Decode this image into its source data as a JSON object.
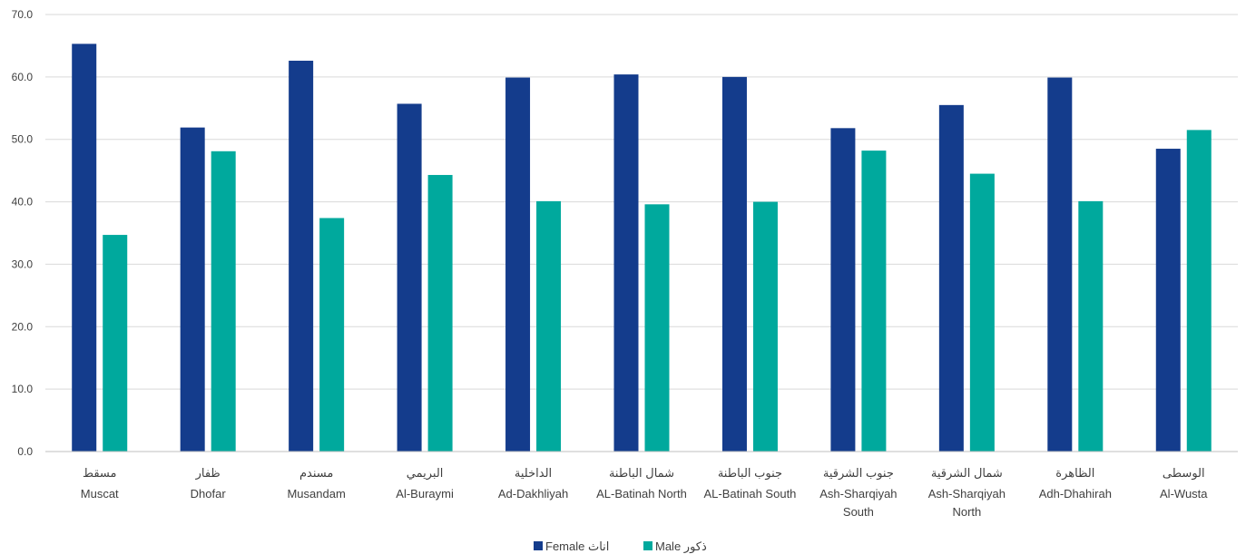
{
  "chart_data": {
    "type": "bar",
    "title": "",
    "xlabel": "",
    "ylabel": "",
    "ylim": [
      0,
      70
    ],
    "yticks": [
      "0.0",
      "10.0",
      "20.0",
      "30.0",
      "40.0",
      "50.0",
      "60.0",
      "70.0"
    ],
    "grid": true,
    "legend_position": "bottom",
    "categories": [
      {
        "ar": "مسقط",
        "en": [
          "Muscat"
        ]
      },
      {
        "ar": "ظفار",
        "en": [
          "Dhofar"
        ]
      },
      {
        "ar": "مسندم",
        "en": [
          "Musandam"
        ]
      },
      {
        "ar": "البريمي",
        "en": [
          "Al-Buraymi"
        ]
      },
      {
        "ar": "الداخلية",
        "en": [
          "Ad-Dakhliyah"
        ]
      },
      {
        "ar": "شمال الباطنة",
        "en": [
          "AL-Batinah North"
        ]
      },
      {
        "ar": "جنوب الباطنة",
        "en": [
          "AL-Batinah South"
        ]
      },
      {
        "ar": "جنوب الشرقية",
        "en": [
          "Ash-Sharqiyah",
          "South"
        ]
      },
      {
        "ar": "شمال الشرقية",
        "en": [
          "Ash-Sharqiyah",
          "North"
        ]
      },
      {
        "ar": "الظاهرة",
        "en": [
          "Adh-Dhahirah"
        ]
      },
      {
        "ar": "الوسطى",
        "en": [
          "Al-Wusta"
        ]
      }
    ],
    "series": [
      {
        "name": "Female اناث",
        "color": "#143C8C",
        "values": [
          65.3,
          51.9,
          62.6,
          55.7,
          59.9,
          60.4,
          60.0,
          51.8,
          55.5,
          59.9,
          48.5
        ]
      },
      {
        "name": "Male ذكور",
        "color": "#00A99D",
        "values": [
          34.7,
          48.1,
          37.4,
          44.3,
          40.1,
          39.6,
          40.0,
          48.2,
          44.5,
          40.1,
          51.5
        ]
      }
    ]
  }
}
